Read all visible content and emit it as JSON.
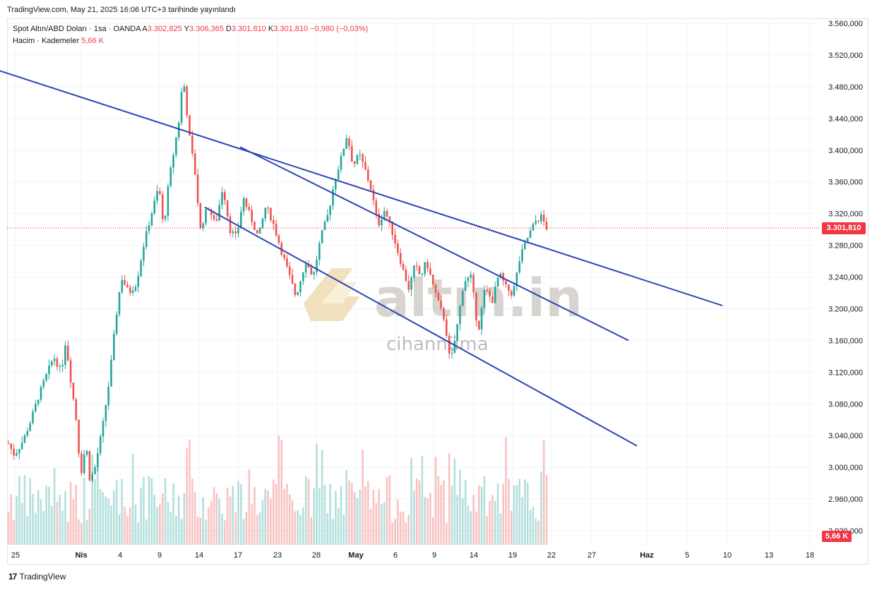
{
  "header": {
    "published": "TradingView.com, May 21, 2025 16:06 UTC+3 tarihinde yayınlandı"
  },
  "legend": {
    "symbol": "Spot Altın/ABD Doları · 1sa · OANDA",
    "open_label": "A",
    "open": "3.302,825",
    "high_label": "Y",
    "high": "3.306,365",
    "low_label": "D",
    "low": "3.301,810",
    "close_label": "K",
    "close": "3.301,810",
    "change": "−0,980 (−0,03%)",
    "volume_label": "Hacim · Kademeler",
    "volume": "5,66 K"
  },
  "last_price_tag": "3.301,810",
  "volume_tag": "5,66 K",
  "watermark": {
    "brand": "altın.in",
    "sub": "cihannüma"
  },
  "footer": {
    "brand": "TradingView"
  },
  "colors": {
    "up": "#26a69a",
    "down": "#ef5350",
    "channel": "#2a45b5",
    "price_line": "#f23645"
  },
  "chart_data": {
    "type": "candlestick",
    "y_axis": {
      "ticks": [
        3560,
        3520,
        3480,
        3440,
        3400,
        3360,
        3320,
        3280,
        3240,
        3200,
        3160,
        3120,
        3080,
        3040,
        3000,
        2960,
        2920
      ],
      "tick_labels": [
        "3.560,000",
        "3.520,000",
        "3.480,000",
        "3.440,000",
        "3.400,000",
        "3.360,000",
        "3.320,000",
        "3.280,000",
        "3.240,000",
        "3.200,000",
        "3.160,000",
        "3.120,000",
        "3.080,000",
        "3.040,000",
        "3.000,000",
        "2.960,000",
        "2.920,000"
      ],
      "range": [
        2912,
        3572
      ]
    },
    "x_axis": {
      "labels": [
        "25",
        "Nis",
        "4",
        "9",
        "14",
        "17",
        "23",
        "28",
        "May",
        "6",
        "9",
        "14",
        "19",
        "22",
        "27",
        "Haz",
        "5",
        "10",
        "13",
        "18"
      ],
      "bold": [
        "Nis",
        "May",
        "Haz"
      ]
    },
    "last_price": 3301.81,
    "price_path": [
      [
        0,
        3030
      ],
      [
        0.8,
        3015
      ],
      [
        2,
        3035
      ],
      [
        3,
        3060
      ],
      [
        4,
        3090
      ],
      [
        5,
        3115
      ],
      [
        6,
        3140
      ],
      [
        7,
        3120
      ],
      [
        7.6,
        3160
      ],
      [
        8.2,
        3115
      ],
      [
        9,
        3060
      ],
      [
        9.6,
        2990
      ],
      [
        10.3,
        3030
      ],
      [
        10.8,
        2985
      ],
      [
        11.4,
        2995
      ],
      [
        12.5,
        3050
      ],
      [
        13.4,
        3110
      ],
      [
        14.3,
        3190
      ],
      [
        15,
        3240
      ],
      [
        16,
        3220
      ],
      [
        17,
        3232
      ],
      [
        18,
        3282
      ],
      [
        19,
        3320
      ],
      [
        20,
        3355
      ],
      [
        20.6,
        3300
      ],
      [
        21.3,
        3360
      ],
      [
        22,
        3400
      ],
      [
        22.7,
        3440
      ],
      [
        23.2,
        3495
      ],
      [
        24,
        3420
      ],
      [
        24.8,
        3370
      ],
      [
        25.5,
        3300
      ],
      [
        26.5,
        3330
      ],
      [
        27.5,
        3305
      ],
      [
        28.5,
        3355
      ],
      [
        29.4,
        3300
      ],
      [
        30.3,
        3290
      ],
      [
        31.2,
        3340
      ],
      [
        32.2,
        3315
      ],
      [
        33.2,
        3290
      ],
      [
        34.2,
        3330
      ],
      [
        35.1,
        3310
      ],
      [
        36.2,
        3275
      ],
      [
        37.2,
        3245
      ],
      [
        38.2,
        3215
      ],
      [
        39.5,
        3260
      ],
      [
        40.5,
        3240
      ],
      [
        41.5,
        3290
      ],
      [
        42.5,
        3320
      ],
      [
        43.3,
        3360
      ],
      [
        44.2,
        3390
      ],
      [
        45,
        3420
      ],
      [
        45.8,
        3380
      ],
      [
        46.6,
        3395
      ],
      [
        47.4,
        3375
      ],
      [
        48.2,
        3350
      ],
      [
        49.1,
        3305
      ],
      [
        50,
        3325
      ],
      [
        50.9,
        3300
      ],
      [
        51.5,
        3280
      ],
      [
        52.4,
        3250
      ],
      [
        53.2,
        3225
      ],
      [
        54,
        3255
      ],
      [
        54.8,
        3240
      ],
      [
        55.5,
        3260
      ],
      [
        56.4,
        3230
      ],
      [
        57.2,
        3205
      ],
      [
        58,
        3185
      ],
      [
        58.7,
        3130
      ],
      [
        59.5,
        3170
      ],
      [
        60.5,
        3235
      ],
      [
        61.5,
        3240
      ],
      [
        62.4,
        3170
      ],
      [
        63.3,
        3225
      ],
      [
        64.3,
        3210
      ],
      [
        65.2,
        3245
      ],
      [
        66.2,
        3225
      ],
      [
        67,
        3218
      ],
      [
        68,
        3265
      ],
      [
        69,
        3290
      ],
      [
        70,
        3310
      ],
      [
        70.8,
        3316
      ],
      [
        71.5,
        3302
      ]
    ],
    "channels": [
      {
        "name": "upper",
        "from": [
          "20",
          3500
        ],
        "to": [
          "10",
          3204
        ]
      },
      {
        "name": "middle",
        "from": [
          "17",
          3404
        ],
        "to": [
          "5",
          3160
        ]
      },
      {
        "name": "lower",
        "from": [
          "14",
          3328
        ],
        "to": [
          "5",
          3027
        ]
      }
    ]
  }
}
